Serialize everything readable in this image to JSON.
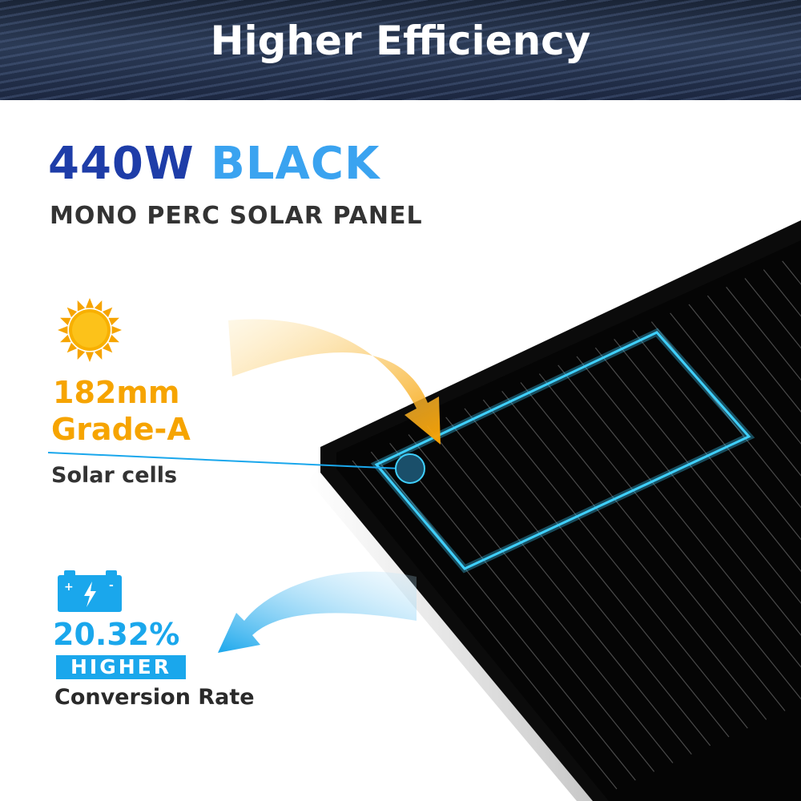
{
  "header": {
    "title": "Higher Efficiency"
  },
  "headline": {
    "wattage": "440W",
    "color_word": "BLACK",
    "subtitle": "MONO PERC SOLAR PANEL"
  },
  "cells": {
    "icon": "sun-icon",
    "size": "182mm",
    "grade": "Grade-A",
    "label": "Solar cells"
  },
  "conversion": {
    "icon": "battery-icon",
    "value": "20.32%",
    "badge": "HIGHER",
    "label": "Conversion Rate"
  },
  "colors": {
    "dark_blue": "#1e3da8",
    "light_blue": "#3aa3f0",
    "orange": "#f6a400",
    "cyan": "#1aa7ec"
  }
}
